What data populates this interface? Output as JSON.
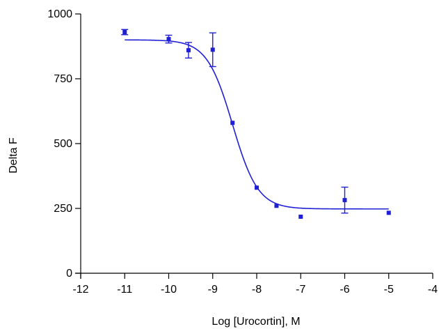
{
  "chart_data": {
    "type": "scatter",
    "title": "",
    "xlabel": "Log [Urocortin], M",
    "ylabel": "Delta F",
    "xlim": [
      -12,
      -4
    ],
    "ylim": [
      0,
      1000
    ],
    "x_ticks": [
      -12,
      -11,
      -10,
      -9,
      -8,
      -7,
      -6,
      -5,
      -4
    ],
    "y_ticks": [
      0,
      250,
      500,
      750,
      1000
    ],
    "grid": false,
    "series": [
      {
        "color": "#1f1fd6",
        "points": [
          {
            "x": -11.0,
            "y": 930,
            "err": 10
          },
          {
            "x": -10.0,
            "y": 903,
            "err": 15
          },
          {
            "x": -9.55,
            "y": 860,
            "err": 30
          },
          {
            "x": -9.0,
            "y": 862,
            "err": 65
          },
          {
            "x": -8.55,
            "y": 580,
            "err": 0
          },
          {
            "x": -8.0,
            "y": 330,
            "err": 0
          },
          {
            "x": -7.55,
            "y": 260,
            "err": 0
          },
          {
            "x": -7.0,
            "y": 218,
            "err": 0
          },
          {
            "x": -6.0,
            "y": 282,
            "err": 50
          },
          {
            "x": -5.0,
            "y": 233,
            "err": 0
          }
        ]
      }
    ],
    "fit_curve": {
      "type": "sigmoidal",
      "color": "#1f1fd6",
      "top": 900,
      "bottom": 248,
      "logIC50": -8.55,
      "hill_slope": -1.5,
      "x_range": [
        -11.0,
        -5.0
      ]
    }
  }
}
